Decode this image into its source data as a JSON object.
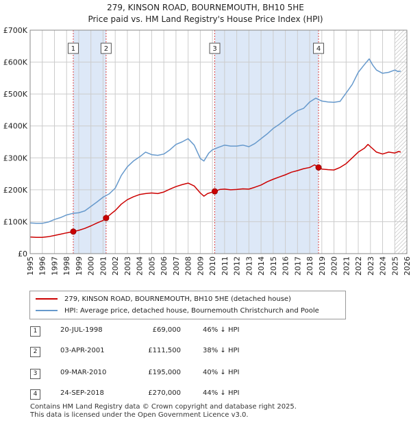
{
  "title_line1": "279, KINSON ROAD, BOURNEMOUTH, BH10 5HE",
  "title_line2": "Price paid vs. HM Land Registry's House Price Index (HPI)",
  "chart_data": {
    "type": "line",
    "title": "279, KINSON ROAD, BOURNEMOUTH, BH10 5HE — Price paid vs. HM Land Registry's House Price Index (HPI)",
    "xlabel": "",
    "ylabel": "",
    "xlim": [
      1995,
      2026
    ],
    "ylim": [
      0,
      700000
    ],
    "y_ticks": [
      0,
      100000,
      200000,
      300000,
      400000,
      500000,
      600000,
      700000
    ],
    "y_tick_labels": [
      "£0",
      "£100K",
      "£200K",
      "£300K",
      "£400K",
      "£500K",
      "£600K",
      "£700K"
    ],
    "x_ticks": [
      1995,
      1996,
      1997,
      1998,
      1999,
      2000,
      2001,
      2002,
      2003,
      2004,
      2005,
      2006,
      2007,
      2008,
      2009,
      2010,
      2011,
      2012,
      2013,
      2014,
      2015,
      2016,
      2017,
      2018,
      2019,
      2020,
      2021,
      2022,
      2023,
      2024,
      2025,
      2026
    ],
    "grid": true,
    "colors": {
      "property": "#cc0000",
      "hpi": "#6699cc",
      "shade": "#dde8f7",
      "vline": "#dd4444",
      "grid": "#cccccc",
      "hatch": "#999999"
    },
    "shaded_spans": [
      [
        1998.55,
        2001.25
      ],
      [
        2010.19,
        2018.73
      ]
    ],
    "hatched_from": 2025.0,
    "series": [
      {
        "name": "279, KINSON ROAD, BOURNEMOUTH, BH10 5HE (detached house)",
        "color": "#cc0000",
        "x": [
          1995.0,
          1995.5,
          1996.0,
          1996.5,
          1997.0,
          1997.5,
          1998.0,
          1998.55,
          1999.0,
          1999.5,
          2000.0,
          2000.5,
          2001.0,
          2001.25,
          2001.7,
          2002.0,
          2002.5,
          2003.0,
          2003.5,
          2004.0,
          2004.5,
          2005.0,
          2005.5,
          2006.0,
          2006.5,
          2007.0,
          2007.5,
          2008.0,
          2008.5,
          2009.0,
          2009.3,
          2009.6,
          2010.19,
          2010.6,
          2011.0,
          2011.5,
          2012.0,
          2012.5,
          2013.0,
          2013.5,
          2014.0,
          2014.5,
          2015.0,
          2015.5,
          2016.0,
          2016.5,
          2017.0,
          2017.5,
          2018.0,
          2018.4,
          2018.73,
          2019.0,
          2019.5,
          2020.0,
          2020.5,
          2021.0,
          2021.5,
          2022.0,
          2022.5,
          2022.8,
          2023.0,
          2023.5,
          2024.0,
          2024.5,
          2025.0,
          2025.3,
          2025.5
        ],
        "values": [
          52000,
          51000,
          51000,
          53000,
          57000,
          61000,
          65000,
          69000,
          73000,
          79000,
          87000,
          96000,
          104000,
          111500,
          126000,
          135000,
          155000,
          169000,
          178000,
          185000,
          188000,
          190000,
          188000,
          193000,
          202000,
          210000,
          216000,
          221000,
          212000,
          190000,
          180000,
          188000,
          195000,
          201000,
          202000,
          200000,
          201000,
          203000,
          202000,
          208000,
          215000,
          225000,
          233000,
          240000,
          247000,
          255000,
          260000,
          266000,
          270000,
          278000,
          270000,
          265000,
          263000,
          262000,
          270000,
          282000,
          300000,
          318000,
          330000,
          342000,
          335000,
          318000,
          312000,
          318000,
          315000,
          320000,
          318000
        ]
      },
      {
        "name": "HPI: Average price, detached house, Bournemouth Christchurch and Poole",
        "color": "#6699cc",
        "x": [
          1995.0,
          1995.5,
          1996.0,
          1996.5,
          1997.0,
          1997.5,
          1998.0,
          1998.5,
          1999.0,
          1999.5,
          2000.0,
          2000.5,
          2001.0,
          2001.5,
          2002.0,
          2002.5,
          2003.0,
          2003.5,
          2004.0,
          2004.5,
          2005.0,
          2005.5,
          2006.0,
          2006.5,
          2007.0,
          2007.5,
          2008.0,
          2008.5,
          2009.0,
          2009.3,
          2009.7,
          2010.0,
          2010.5,
          2011.0,
          2011.5,
          2012.0,
          2012.5,
          2013.0,
          2013.5,
          2014.0,
          2014.5,
          2015.0,
          2015.5,
          2016.0,
          2016.5,
          2017.0,
          2017.5,
          2018.0,
          2018.5,
          2019.0,
          2019.5,
          2020.0,
          2020.5,
          2021.0,
          2021.5,
          2022.0,
          2022.5,
          2022.9,
          2023.2,
          2023.5,
          2024.0,
          2024.5,
          2025.0,
          2025.3,
          2025.5
        ],
        "values": [
          96000,
          95000,
          95000,
          99000,
          107000,
          113000,
          121000,
          126000,
          128000,
          134000,
          148000,
          162000,
          177000,
          187000,
          205000,
          245000,
          272000,
          290000,
          303000,
          318000,
          310000,
          308000,
          312000,
          325000,
          342000,
          350000,
          360000,
          340000,
          298000,
          290000,
          315000,
          325000,
          333000,
          340000,
          337000,
          337000,
          340000,
          335000,
          345000,
          360000,
          375000,
          392000,
          405000,
          420000,
          435000,
          448000,
          455000,
          475000,
          487000,
          478000,
          475000,
          474000,
          477000,
          503000,
          530000,
          568000,
          592000,
          610000,
          590000,
          575000,
          565000,
          568000,
          575000,
          570000,
          572000
        ]
      }
    ],
    "sales": [
      {
        "label": "1",
        "x": 1998.55,
        "value": 69000
      },
      {
        "label": "2",
        "x": 2001.25,
        "value": 111500
      },
      {
        "label": "3",
        "x": 2010.19,
        "value": 195000
      },
      {
        "label": "4",
        "x": 2018.73,
        "value": 270000
      }
    ]
  },
  "legend": {
    "property": "279, KINSON ROAD, BOURNEMOUTH, BH10 5HE (detached house)",
    "hpi": "HPI: Average price, detached house, Bournemouth Christchurch and Poole"
  },
  "transactions": [
    {
      "num": "1",
      "date": "20-JUL-1998",
      "price": "£69,000",
      "pct": "46% ↓ HPI"
    },
    {
      "num": "2",
      "date": "03-APR-2001",
      "price": "£111,500",
      "pct": "38% ↓ HPI"
    },
    {
      "num": "3",
      "date": "09-MAR-2010",
      "price": "£195,000",
      "pct": "40% ↓ HPI"
    },
    {
      "num": "4",
      "date": "24-SEP-2018",
      "price": "£270,000",
      "pct": "44% ↓ HPI"
    }
  ],
  "footer": {
    "line1": "Contains HM Land Registry data © Crown copyright and database right 2025.",
    "line2": "This data is licensed under the Open Government Licence v3.0."
  }
}
